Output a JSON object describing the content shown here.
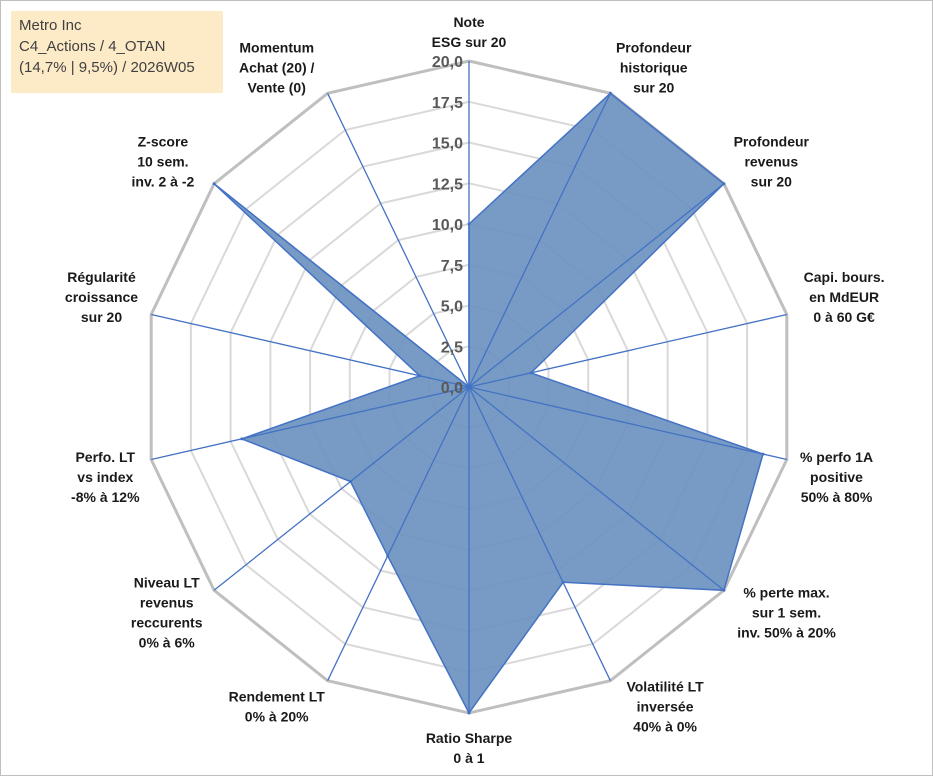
{
  "header": {
    "lines": [
      "Metro Inc",
      "C4_Actions / 4_OTAN",
      "(14,7% | 9,5%) / 2026W05"
    ]
  },
  "colors": {
    "fill": "#6d93c0",
    "stroke": "#4472c4",
    "grid_outer": "#bfbfbf",
    "grid_inner": "#d9d9d9",
    "spoke": "#4472c4"
  },
  "chart_data": {
    "type": "radar",
    "rlim": [
      0,
      20
    ],
    "ticks": [
      "0,0",
      "2,5",
      "5,0",
      "7,5",
      "10,0",
      "12,5",
      "15,0",
      "17,5",
      "20,0"
    ],
    "axes": [
      [
        "Note",
        "ESG sur 20"
      ],
      [
        "Profondeur",
        "historique",
        "sur 20"
      ],
      [
        "Profondeur",
        "revenus",
        "sur 20"
      ],
      [
        "Capi. bours.",
        "en MdEUR",
        "0 à 60 G€"
      ],
      [
        "% perfo 1A",
        "positive",
        "50% à 80%"
      ],
      [
        "% perte max.",
        "sur 1 sem.",
        "inv. 50% à 20%"
      ],
      [
        "Volatilité LT",
        "inversée",
        "40% à 0%"
      ],
      [
        "Ratio Sharpe",
        "0 à 1"
      ],
      [
        "Rendement LT",
        "0% à 20%"
      ],
      [
        "Niveau LT",
        "revenus",
        "reccurents",
        "0% à 6%"
      ],
      [
        "Perfo. LT",
        "vs index",
        "-8% à 12%"
      ],
      [
        "Régularité",
        "croissance",
        "sur 20"
      ],
      [
        "Z-score",
        "10 sem.",
        "inv. 2 à -2"
      ],
      [
        "Momentum",
        "Achat (20) /",
        "Vente (0)"
      ]
    ],
    "values": [
      10,
      20,
      20,
      3.9,
      18.5,
      20,
      13.3,
      20,
      11.5,
      9.3,
      14.3,
      3.1,
      20,
      0
    ]
  }
}
